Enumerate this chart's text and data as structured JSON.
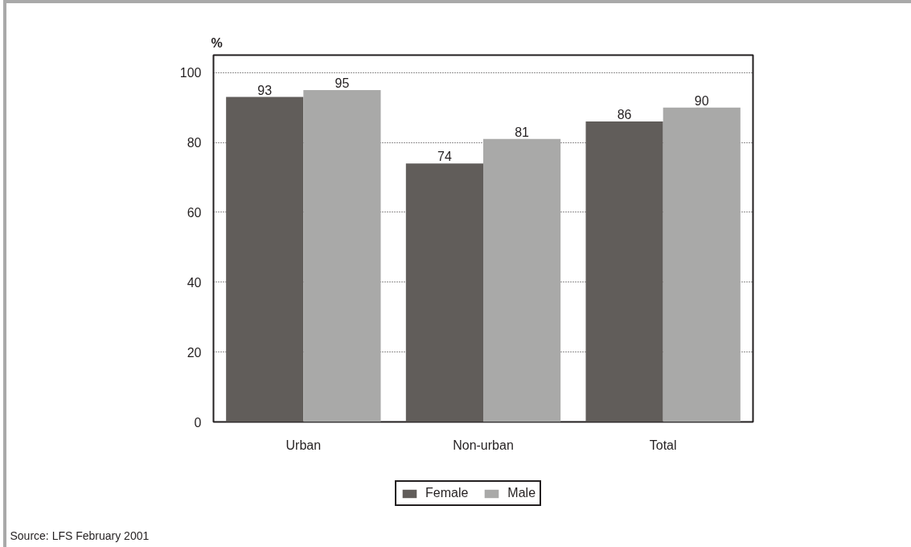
{
  "chart_data": {
    "type": "bar",
    "categories": [
      "Urban",
      "Non-urban",
      "Total"
    ],
    "series": [
      {
        "name": "Female",
        "color": "#615d5a",
        "values": [
          93,
          74,
          86
        ]
      },
      {
        "name": "Male",
        "color": "#a9a9a8",
        "values": [
          95,
          81,
          90
        ]
      }
    ],
    "ylabel": "%",
    "ylim": [
      0,
      105
    ],
    "yticks": [
      0,
      20,
      40,
      60,
      80,
      100
    ],
    "grid": "y",
    "legend": "bottom",
    "data_labels": true,
    "annotations": [
      "Source: LFS February 2001"
    ]
  }
}
